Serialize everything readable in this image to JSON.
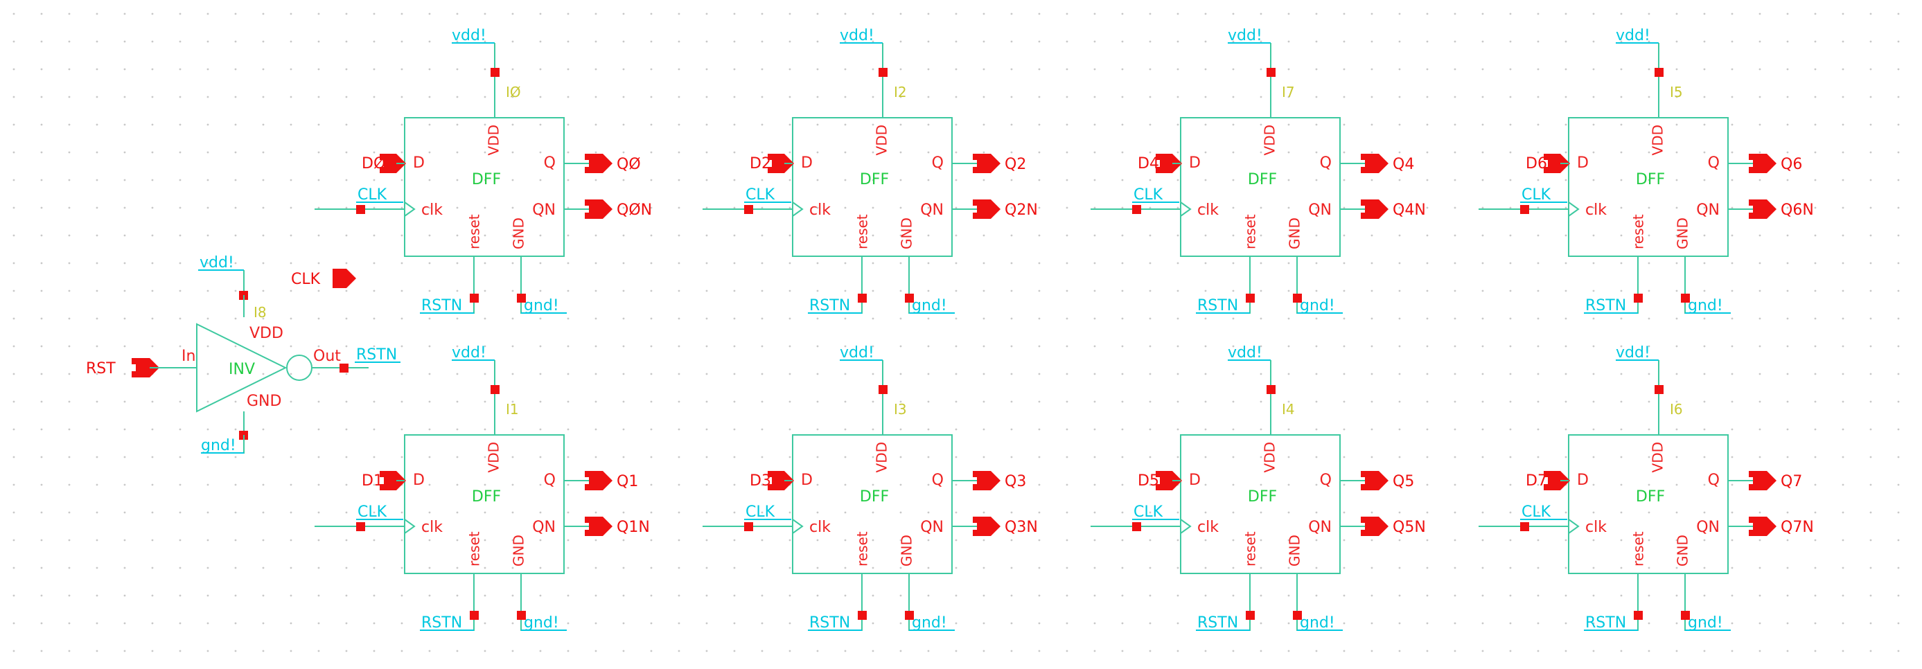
{
  "dff": {
    "cell_name": "DFF",
    "pins": {
      "d": "D",
      "clk": "clk",
      "q": "Q",
      "qn": "QN",
      "vdd": "VDD",
      "gnd": "GND",
      "reset": "reset"
    },
    "instances": [
      {
        "inst": "IØ",
        "d": "DØ",
        "q": "QØ",
        "qn": "QØN",
        "clk": "CLK",
        "rst": "RSTN",
        "vdd": "vdd!",
        "gnd": "gnd!"
      },
      {
        "inst": "I2",
        "d": "D2",
        "q": "Q2",
        "qn": "Q2N",
        "clk": "CLK",
        "rst": "RSTN",
        "vdd": "vdd!",
        "gnd": "gnd!"
      },
      {
        "inst": "I7",
        "d": "D4",
        "q": "Q4",
        "qn": "Q4N",
        "clk": "CLK",
        "rst": "RSTN",
        "vdd": "vdd!",
        "gnd": "gnd!"
      },
      {
        "inst": "I5",
        "d": "D6",
        "q": "Q6",
        "qn": "Q6N",
        "clk": "CLK",
        "rst": "RSTN",
        "vdd": "vdd!",
        "gnd": "gnd!"
      },
      {
        "inst": "I1",
        "d": "D1",
        "q": "Q1",
        "qn": "Q1N",
        "clk": "CLK",
        "rst": "RSTN",
        "vdd": "vdd!",
        "gnd": "gnd!"
      },
      {
        "inst": "I3",
        "d": "D3",
        "q": "Q3",
        "qn": "Q3N",
        "clk": "CLK",
        "rst": "RSTN",
        "vdd": "vdd!",
        "gnd": "gnd!"
      },
      {
        "inst": "I4",
        "d": "D5",
        "q": "Q5",
        "qn": "Q5N",
        "clk": "CLK",
        "rst": "RSTN",
        "vdd": "vdd!",
        "gnd": "gnd!"
      },
      {
        "inst": "I6",
        "d": "D7",
        "q": "Q7",
        "qn": "Q7N",
        "clk": "CLK",
        "rst": "RSTN",
        "vdd": "vdd!",
        "gnd": "gnd!"
      }
    ]
  },
  "inverter": {
    "cell_name": "INV",
    "inst": "I8",
    "pin_in": "In",
    "pin_out": "Out",
    "pin_vdd": "VDD",
    "pin_gnd": "GND",
    "in_net": "RST",
    "out_net": "RSTN",
    "vdd_net": "vdd!",
    "gnd_net": "gnd!"
  },
  "free_port": {
    "label": "CLK"
  },
  "colors": {
    "background": "#ffffff",
    "grid_dot": "#c8c8c8",
    "wire": "#3ec9a0",
    "net_label": "#00c8e0",
    "pin_label": "#ee2222",
    "cell_name": "#22cc44",
    "instance_name": "#c8c832",
    "terminal": "#ee1111"
  }
}
